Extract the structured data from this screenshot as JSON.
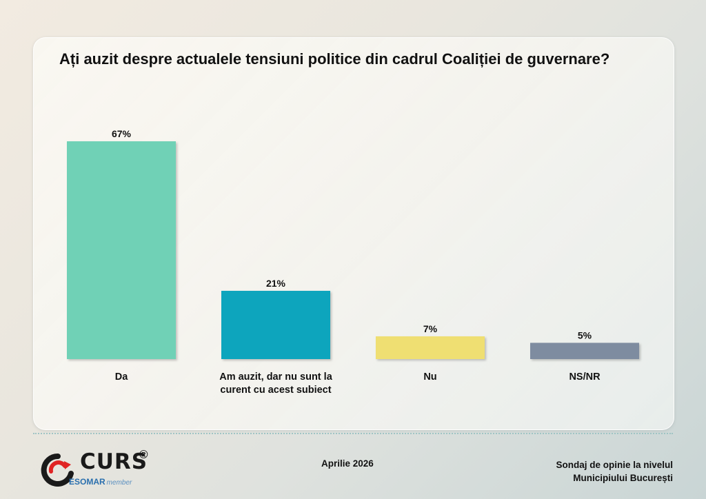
{
  "chart_data": {
    "type": "bar",
    "title": "Ați auzit despre actualele tensiuni politice din cadrul Coaliției de guvernare?",
    "categories": [
      "Da",
      "Am auzit, dar nu sunt la curent cu acest subiect",
      "Nu",
      "NS/NR"
    ],
    "category_lines": [
      [
        "Da"
      ],
      [
        "Am auzit, dar nu sunt la",
        "curent cu acest subiect"
      ],
      [
        "Nu"
      ],
      [
        "NS/NR"
      ]
    ],
    "values": [
      67,
      21,
      7,
      5
    ],
    "value_labels": [
      "67%",
      "21%",
      "7%",
      "5%"
    ],
    "colors": [
      "#6fd1b6",
      "#0aa5bd",
      "#efdf72",
      "#7e8ca0"
    ],
    "ylim": [
      0,
      67
    ],
    "grid": false,
    "legend": "none"
  },
  "footer": {
    "date": "Aprilie 2026",
    "source_line1": "Sondaj de opinie la nivelul",
    "source_line2": "Municipiului București"
  },
  "logo": {
    "name": "CURS",
    "reg": "®",
    "esomar": "ESOMAR",
    "member": "member"
  }
}
